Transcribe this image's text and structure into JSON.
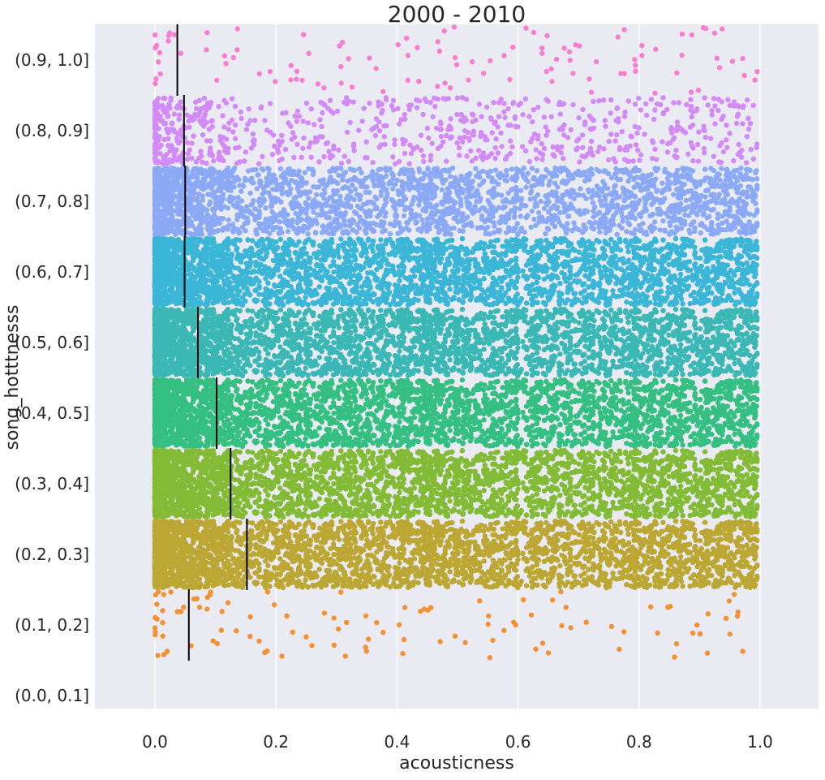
{
  "chart_data": {
    "type": "scatter",
    "title": "2000 - 2010",
    "xlabel": "acousticness",
    "ylabel": "song_hotttnesss",
    "xlim": [
      -0.1,
      1.1
    ],
    "x_ticks": [
      "0.0",
      "0.2",
      "0.4",
      "0.6",
      "0.8",
      "1.0"
    ],
    "grid": true,
    "categories": [
      "(0.9, 1.0]",
      "(0.8, 0.9]",
      "(0.7, 0.8]",
      "(0.6, 0.7]",
      "(0.5, 0.6]",
      "(0.4, 0.5]",
      "(0.3, 0.4]",
      "(0.2, 0.3]",
      "(0.1, 0.2]",
      "(0.0, 0.1]"
    ],
    "series": [
      {
        "category": "(0.9, 1.0]",
        "color": "#f77fd0",
        "point_density": "sparse",
        "x_range": [
          0.0,
          1.0
        ],
        "median_acousticness": 0.037
      },
      {
        "category": "(0.8, 0.9]",
        "color": "#d28bf5",
        "point_density": "moderate",
        "x_range": [
          0.0,
          1.0
        ],
        "median_acousticness": 0.048
      },
      {
        "category": "(0.7, 0.8]",
        "color": "#8ba9f5",
        "point_density": "dense",
        "x_range": [
          0.0,
          1.0
        ],
        "median_acousticness": 0.05
      },
      {
        "category": "(0.6, 0.7]",
        "color": "#3cb6d6",
        "point_density": "very dense",
        "x_range": [
          0.0,
          1.0
        ],
        "median_acousticness": 0.049
      },
      {
        "category": "(0.5, 0.6]",
        "color": "#3bb8b6",
        "point_density": "very dense",
        "x_range": [
          0.0,
          1.0
        ],
        "median_acousticness": 0.071
      },
      {
        "category": "(0.4, 0.5]",
        "color": "#35bf82",
        "point_density": "very dense",
        "x_range": [
          0.0,
          1.0
        ],
        "median_acousticness": 0.102
      },
      {
        "category": "(0.3, 0.4]",
        "color": "#83bb37",
        "point_density": "very dense",
        "x_range": [
          0.0,
          1.0
        ],
        "median_acousticness": 0.125
      },
      {
        "category": "(0.2, 0.3]",
        "color": "#bca734",
        "point_density": "very dense",
        "x_range": [
          0.0,
          1.0
        ],
        "median_acousticness": 0.152
      },
      {
        "category": "(0.1, 0.2]",
        "color": "#f19237",
        "point_density": "sparse",
        "x_range": [
          0.0,
          1.0
        ],
        "median_acousticness": 0.056
      },
      {
        "category": "(0.0, 0.1]",
        "color": "#e68a57",
        "point_density": "empty",
        "x_range": [
          0.0,
          1.0
        ],
        "median_acousticness": null
      }
    ]
  }
}
